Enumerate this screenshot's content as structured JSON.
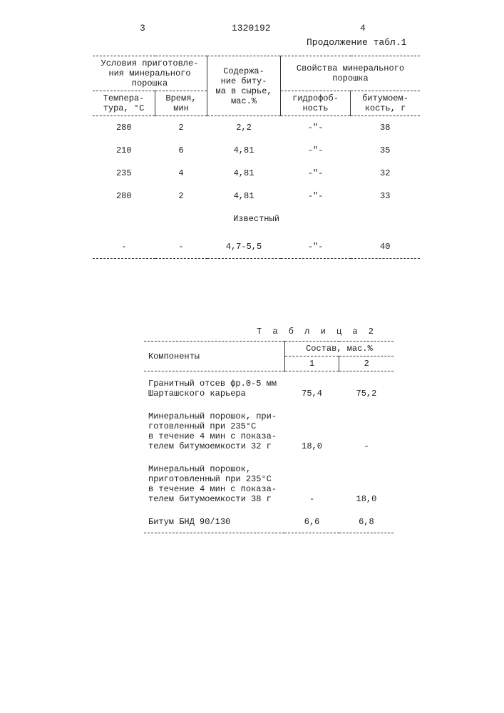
{
  "page": {
    "left_num": "3",
    "center_num": "1320192",
    "right_num": "4",
    "cont": "Продолжение табл.1"
  },
  "table1": {
    "head": {
      "prep_cond": "Условия приготовле-\nния минерального\nпорошка",
      "content": "Содержа-\nние биту-\nма в сырье,\nмас.%",
      "props": "Свойства минерального\nпорошка",
      "temp": "Темпера-\nтура, °C",
      "time": "Время,\nмин",
      "hydro": "гидрофоб-\nность",
      "bitcap": "битумоем-\nкость, г"
    },
    "rows": [
      {
        "temp": "280",
        "time": "2",
        "content": "2,2",
        "hydro": "-\"-",
        "bitcap": "38"
      },
      {
        "temp": "210",
        "time": "6",
        "content": "4,81",
        "hydro": "-\"-",
        "bitcap": "35"
      },
      {
        "temp": "235",
        "time": "4",
        "content": "4,81",
        "hydro": "-\"-",
        "bitcap": "32"
      },
      {
        "temp": "280",
        "time": "2",
        "content": "4,81",
        "hydro": "-\"-",
        "bitcap": "33"
      }
    ],
    "known_label": "Известный",
    "known_row": {
      "temp": "-",
      "time": "-",
      "content": "4,7-5,5",
      "hydro": "-\"-",
      "bitcap": "40"
    }
  },
  "table2": {
    "title": "Т а б л и ц а  2",
    "head": {
      "comp": "Компоненты",
      "sostav": "Состав, мас.%",
      "c1": "1",
      "c2": "2"
    },
    "rows": [
      {
        "comp": "Гранитный отсев фр.0-5 мм\nШарташского карьера",
        "c1": "75,4",
        "c2": "75,2"
      },
      {
        "comp": "Минеральный порошок, при-\nготовленный при 235°С\nв течение 4 мин с показа-\nтелем битумоемкости 32 г",
        "c1": "18,0",
        "c2": "-"
      },
      {
        "comp": "Минеральный порошок,\nприготовленный при 235°С\nв течение 4 мин с показа-\nтелем битумоемкости 38 г",
        "c1": "-",
        "c2": "18,0"
      },
      {
        "comp": "Битум БНД 90/130",
        "c1": "6,6",
        "c2": "6,8"
      }
    ]
  }
}
